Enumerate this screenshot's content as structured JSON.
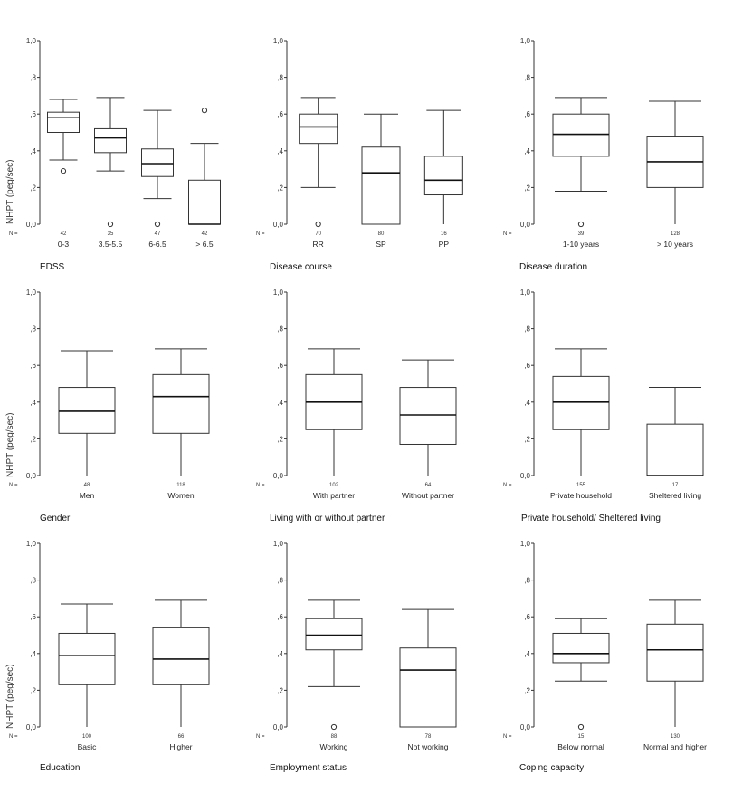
{
  "y_axis_label": "NHPT (peg/sec)",
  "n_label": "N =",
  "chart_data": [
    {
      "type": "boxplot",
      "title": "EDSS",
      "ylim": [
        0,
        1
      ],
      "yticks": [
        "0,0",
        ",2",
        ",4",
        ",6",
        ",8",
        "1,0"
      ],
      "categories": [
        "0-3",
        "3.5-5.5",
        "6-6.5",
        "> 6.5"
      ],
      "n": [
        "42",
        "35",
        "47",
        "42"
      ],
      "boxes": [
        {
          "q1": 0.5,
          "median": 0.58,
          "q3": 0.61,
          "whisker_low": 0.35,
          "whisker_high": 0.68,
          "outliers": [
            0.29
          ]
        },
        {
          "q1": 0.39,
          "median": 0.47,
          "q3": 0.52,
          "whisker_low": 0.29,
          "whisker_high": 0.69,
          "outliers": [
            0.0
          ]
        },
        {
          "q1": 0.26,
          "median": 0.33,
          "q3": 0.41,
          "whisker_low": 0.14,
          "whisker_high": 0.62,
          "outliers": [
            0.0
          ]
        },
        {
          "q1": 0.0,
          "median": 0.0,
          "q3": 0.24,
          "whisker_low": 0.0,
          "whisker_high": 0.44,
          "outliers": [
            0.62
          ]
        }
      ]
    },
    {
      "type": "boxplot",
      "title": "Disease course",
      "ylim": [
        0,
        1
      ],
      "yticks": [
        "0,0",
        ",2",
        ",4",
        ",6",
        ",8",
        "1,0"
      ],
      "categories": [
        "RR",
        "SP",
        "PP"
      ],
      "n": [
        "70",
        "80",
        "16"
      ],
      "boxes": [
        {
          "q1": 0.44,
          "median": 0.53,
          "q3": 0.6,
          "whisker_low": 0.2,
          "whisker_high": 0.69,
          "outliers": [
            0.0
          ]
        },
        {
          "q1": 0.0,
          "median": 0.28,
          "q3": 0.42,
          "whisker_low": 0.0,
          "whisker_high": 0.6,
          "outliers": []
        },
        {
          "q1": 0.16,
          "median": 0.24,
          "q3": 0.37,
          "whisker_low": 0.0,
          "whisker_high": 0.62,
          "outliers": []
        }
      ]
    },
    {
      "type": "boxplot",
      "title": "Disease duration",
      "ylim": [
        0,
        1
      ],
      "yticks": [
        "0,0",
        ",2",
        ",4",
        ",6",
        ",8",
        "1,0"
      ],
      "categories": [
        "1-10 years",
        "> 10 years"
      ],
      "n": [
        "39",
        "128"
      ],
      "boxes": [
        {
          "q1": 0.37,
          "median": 0.49,
          "q3": 0.6,
          "whisker_low": 0.18,
          "whisker_high": 0.69,
          "outliers": [
            0.0
          ]
        },
        {
          "q1": 0.2,
          "median": 0.34,
          "q3": 0.48,
          "whisker_low": 0.0,
          "whisker_high": 0.67,
          "outliers": []
        }
      ]
    },
    {
      "type": "boxplot",
      "title": "Gender",
      "ylim": [
        0,
        1
      ],
      "yticks": [
        "0,0",
        ",2",
        ",4",
        ",6",
        ",8",
        "1,0"
      ],
      "categories": [
        "Men",
        "Women"
      ],
      "n": [
        "48",
        "118"
      ],
      "boxes": [
        {
          "q1": 0.23,
          "median": 0.35,
          "q3": 0.48,
          "whisker_low": 0.0,
          "whisker_high": 0.68,
          "outliers": []
        },
        {
          "q1": 0.23,
          "median": 0.43,
          "q3": 0.55,
          "whisker_low": 0.0,
          "whisker_high": 0.69,
          "outliers": []
        }
      ]
    },
    {
      "type": "boxplot",
      "title": "Living with or without partner",
      "ylim": [
        0,
        1
      ],
      "yticks": [
        "0,0",
        ",2",
        ",4",
        ",6",
        ",8",
        "1,0"
      ],
      "categories": [
        "With partner",
        "Without partner"
      ],
      "n": [
        "102",
        "64"
      ],
      "boxes": [
        {
          "q1": 0.25,
          "median": 0.4,
          "q3": 0.55,
          "whisker_low": 0.0,
          "whisker_high": 0.69,
          "outliers": []
        },
        {
          "q1": 0.17,
          "median": 0.33,
          "q3": 0.48,
          "whisker_low": 0.0,
          "whisker_high": 0.63,
          "outliers": []
        }
      ]
    },
    {
      "type": "boxplot",
      "title": "Private household/ Sheltered living",
      "ylim": [
        0,
        1
      ],
      "yticks": [
        "0,0",
        ",2",
        ",4",
        ",6",
        ",8",
        "1,0"
      ],
      "categories": [
        "Private household",
        "Sheltered living"
      ],
      "n": [
        "155",
        "17"
      ],
      "boxes": [
        {
          "q1": 0.25,
          "median": 0.4,
          "q3": 0.54,
          "whisker_low": 0.0,
          "whisker_high": 0.69,
          "outliers": []
        },
        {
          "q1": 0.0,
          "median": 0.0,
          "q3": 0.28,
          "whisker_low": 0.0,
          "whisker_high": 0.48,
          "outliers": []
        }
      ]
    },
    {
      "type": "boxplot",
      "title": "Education",
      "ylim": [
        0,
        1
      ],
      "yticks": [
        "0,0",
        ",2",
        ",4",
        ",6",
        ",8",
        "1,0"
      ],
      "categories": [
        "Basic",
        "Higher"
      ],
      "n": [
        "100",
        "66"
      ],
      "boxes": [
        {
          "q1": 0.23,
          "median": 0.39,
          "q3": 0.51,
          "whisker_low": 0.0,
          "whisker_high": 0.67,
          "outliers": []
        },
        {
          "q1": 0.23,
          "median": 0.37,
          "q3": 0.54,
          "whisker_low": 0.0,
          "whisker_high": 0.69,
          "outliers": []
        }
      ]
    },
    {
      "type": "boxplot",
      "title": "Employment status",
      "ylim": [
        0,
        1
      ],
      "yticks": [
        "0,0",
        ",2",
        ",4",
        ",6",
        ",8",
        "1,0"
      ],
      "categories": [
        "Working",
        "Not working"
      ],
      "n": [
        "88",
        "78"
      ],
      "boxes": [
        {
          "q1": 0.42,
          "median": 0.5,
          "q3": 0.59,
          "whisker_low": 0.22,
          "whisker_high": 0.69,
          "outliers": [
            0.0
          ]
        },
        {
          "q1": 0.0,
          "median": 0.31,
          "q3": 0.43,
          "whisker_low": 0.0,
          "whisker_high": 0.64,
          "outliers": []
        }
      ]
    },
    {
      "type": "boxplot",
      "title": "Coping capacity",
      "ylim": [
        0,
        1
      ],
      "yticks": [
        "0,0",
        ",2",
        ",4",
        ",6",
        ",8",
        "1,0"
      ],
      "categories": [
        "Below normal",
        "Normal and higher"
      ],
      "n": [
        "15",
        "130"
      ],
      "boxes": [
        {
          "q1": 0.35,
          "median": 0.4,
          "q3": 0.51,
          "whisker_low": 0.25,
          "whisker_high": 0.59,
          "outliers": [
            0.0
          ]
        },
        {
          "q1": 0.25,
          "median": 0.42,
          "q3": 0.56,
          "whisker_low": 0.0,
          "whisker_high": 0.69,
          "outliers": []
        }
      ]
    }
  ]
}
